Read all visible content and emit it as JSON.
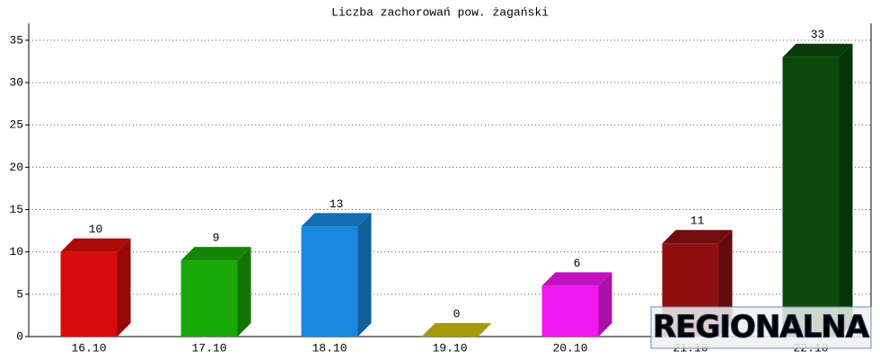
{
  "chart_data": {
    "type": "bar3d",
    "title": "Liczba zachorowań pow. żagański",
    "categories": [
      "16.10",
      "17.10",
      "18.10",
      "19.10",
      "20.10",
      "21.10",
      "22.10"
    ],
    "values": [
      10,
      9,
      13,
      0,
      6,
      11,
      33
    ],
    "colors": [
      "#d80c0c",
      "#18a808",
      "#1888e0",
      "#d0c010",
      "#f018f0",
      "#901010",
      "#0a4a0a"
    ],
    "ylim": [
      0,
      37
    ],
    "yticks": [
      0,
      5,
      10,
      15,
      20,
      25,
      30,
      35
    ],
    "grid": true,
    "watermark": "REGIONALNA"
  }
}
